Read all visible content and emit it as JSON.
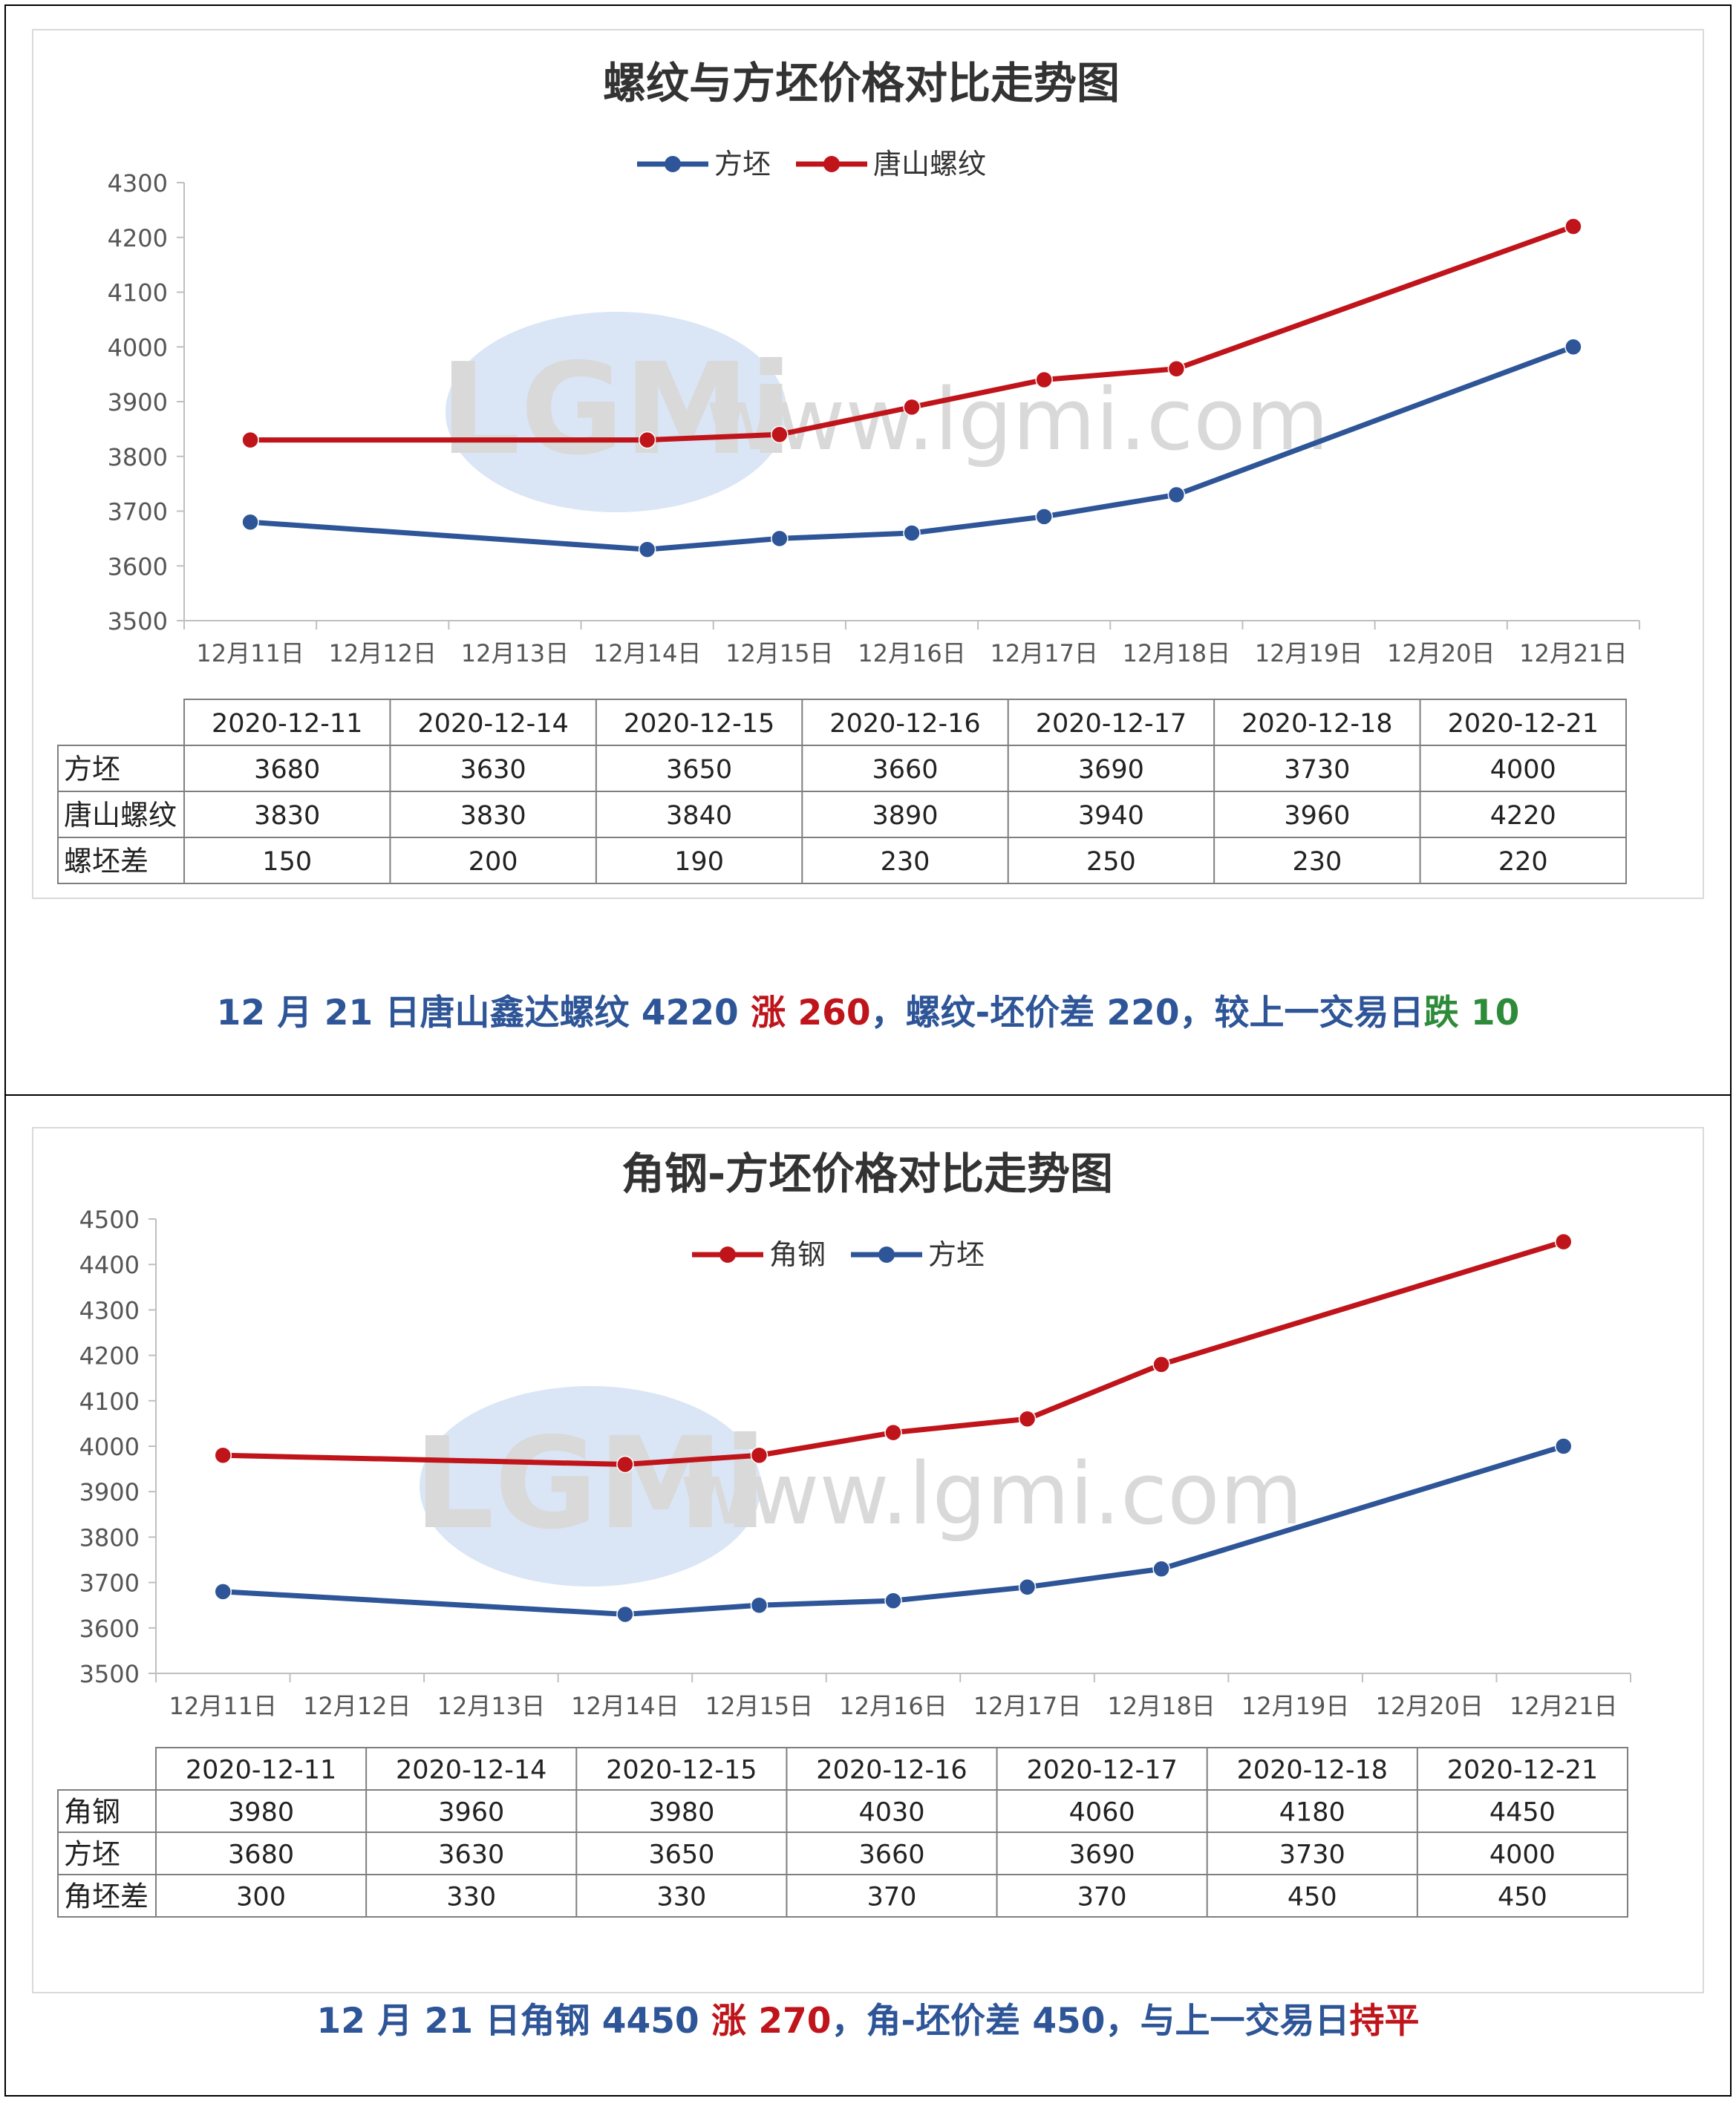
{
  "colors": {
    "blue": "#2E5597",
    "red": "#C0141B",
    "green": "#2E8B3A",
    "grid": "#BFBFBF",
    "text": "#444444"
  },
  "watermark": {
    "logo": "LGMi",
    "url": "www.lgmi.com"
  },
  "chart_data": [
    {
      "type": "line",
      "title": "螺纹与方坯价格对比走势图",
      "x": [
        "12月11日",
        "12月12日",
        "12月13日",
        "12月14日",
        "12月15日",
        "12月16日",
        "12月17日",
        "12月18日",
        "12月19日",
        "12月20日",
        "12月21日"
      ],
      "ylim": [
        3500,
        4300
      ],
      "yticks": [
        3500,
        3600,
        3700,
        3800,
        3900,
        4000,
        4100,
        4200,
        4300
      ],
      "legend_position": "top-center",
      "grid": false,
      "series": [
        {
          "name": "方坯",
          "color": "#2E5597",
          "points": [
            [
              0,
              3680
            ],
            [
              3,
              3630
            ],
            [
              4,
              3650
            ],
            [
              5,
              3660
            ],
            [
              6,
              3690
            ],
            [
              7,
              3730
            ],
            [
              10,
              4000
            ]
          ]
        },
        {
          "name": "唐山螺纹",
          "color": "#C0141B",
          "points": [
            [
              0,
              3830
            ],
            [
              3,
              3830
            ],
            [
              4,
              3840
            ],
            [
              5,
              3890
            ],
            [
              6,
              3940
            ],
            [
              7,
              3960
            ],
            [
              10,
              4220
            ]
          ]
        }
      ],
      "table": {
        "dates": [
          "2020-12-11",
          "2020-12-14",
          "2020-12-15",
          "2020-12-16",
          "2020-12-17",
          "2020-12-18",
          "2020-12-21"
        ],
        "rows": [
          {
            "label": "方坯",
            "values": [
              3680,
              3630,
              3650,
              3660,
              3690,
              3730,
              4000
            ]
          },
          {
            "label": "唐山螺纹",
            "values": [
              3830,
              3830,
              3840,
              3890,
              3940,
              3960,
              4220
            ]
          },
          {
            "label": "螺坯差",
            "values": [
              150,
              200,
              190,
              230,
              250,
              230,
              220
            ]
          }
        ]
      }
    },
    {
      "type": "line",
      "title": "角钢-方坯价格对比走势图",
      "x": [
        "12月11日",
        "12月12日",
        "12月13日",
        "12月14日",
        "12月15日",
        "12月16日",
        "12月17日",
        "12月18日",
        "12月19日",
        "12月20日",
        "12月21日"
      ],
      "ylim": [
        3500,
        4500
      ],
      "yticks": [
        3500,
        3600,
        3700,
        3800,
        3900,
        4000,
        4100,
        4200,
        4300,
        4400,
        4500
      ],
      "legend_position": "top-center",
      "grid": false,
      "series": [
        {
          "name": "角钢",
          "color": "#C0141B",
          "points": [
            [
              0,
              3980
            ],
            [
              3,
              3960
            ],
            [
              4,
              3980
            ],
            [
              5,
              4030
            ],
            [
              6,
              4060
            ],
            [
              7,
              4180
            ],
            [
              10,
              4450
            ]
          ]
        },
        {
          "name": "方坯",
          "color": "#2E5597",
          "points": [
            [
              0,
              3680
            ],
            [
              3,
              3630
            ],
            [
              4,
              3650
            ],
            [
              5,
              3660
            ],
            [
              6,
              3690
            ],
            [
              7,
              3730
            ],
            [
              10,
              4000
            ]
          ]
        }
      ],
      "table": {
        "dates": [
          "2020-12-11",
          "2020-12-14",
          "2020-12-15",
          "2020-12-16",
          "2020-12-17",
          "2020-12-18",
          "2020-12-21"
        ],
        "rows": [
          {
            "label": "角钢",
            "values": [
              3980,
              3960,
              3980,
              4030,
              4060,
              4180,
              4450
            ]
          },
          {
            "label": "方坯",
            "values": [
              3680,
              3630,
              3650,
              3660,
              3690,
              3730,
              4000
            ]
          },
          {
            "label": "角坯差",
            "values": [
              300,
              330,
              330,
              370,
              370,
              450,
              450
            ]
          }
        ]
      }
    }
  ],
  "summaries": [
    {
      "parts": [
        {
          "text": "12 月 21 日唐山鑫达螺纹 4220 ",
          "color": "#2E5597"
        },
        {
          "text": "涨 260",
          "color": "#C0141B"
        },
        {
          "text": "，螺纹-坯价差 220，较上一交易日",
          "color": "#2E5597"
        },
        {
          "text": "跌 10",
          "color": "#2E8B3A"
        }
      ]
    },
    {
      "parts": [
        {
          "text": "12 月 21 日角钢 4450 ",
          "color": "#2E5597"
        },
        {
          "text": "涨 270",
          "color": "#C0141B"
        },
        {
          "text": "，角-坯价差 450，与上一交易日",
          "color": "#2E5597"
        },
        {
          "text": "持平",
          "color": "#C0141B"
        }
      ]
    }
  ]
}
